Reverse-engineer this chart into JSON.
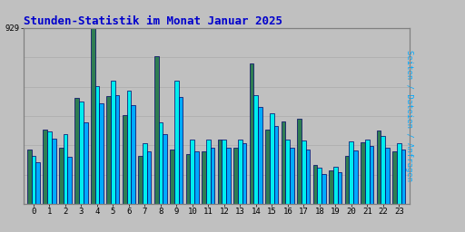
{
  "title": "Stunden-Statistik im Monat Januar 2025",
  "title_color": "#0000CC",
  "background_color": "#C0C0C0",
  "ymax": 929,
  "ymax_label": "929",
  "hours": [
    0,
    1,
    2,
    3,
    4,
    5,
    6,
    7,
    8,
    9,
    10,
    11,
    12,
    13,
    14,
    15,
    16,
    17,
    18,
    19,
    20,
    21,
    22,
    23
  ],
  "seiten": [
    290,
    395,
    295,
    560,
    929,
    570,
    470,
    255,
    780,
    290,
    265,
    280,
    340,
    295,
    740,
    395,
    435,
    450,
    205,
    180,
    255,
    325,
    390,
    280
  ],
  "dateien": [
    255,
    385,
    370,
    540,
    620,
    650,
    600,
    320,
    430,
    650,
    340,
    340,
    340,
    340,
    575,
    480,
    340,
    335,
    190,
    195,
    330,
    340,
    360,
    320
  ],
  "anfragen": [
    220,
    345,
    250,
    430,
    530,
    575,
    520,
    280,
    370,
    565,
    280,
    295,
    295,
    320,
    510,
    410,
    295,
    290,
    160,
    170,
    285,
    305,
    295,
    290
  ],
  "color_seiten": "#2E7D52",
  "color_dateien": "#00EEEE",
  "color_anfragen": "#00AAFF",
  "border_color": "#000066",
  "grid_color": "#B0B0B0",
  "bar_width": 0.27,
  "right_label_seiten": "Seiten",
  "right_label_sep": " / ",
  "right_label_dateien": "Dateien",
  "right_label_anfragen": "Anfragen",
  "right_label_color_seiten": "#2E7D52",
  "right_label_color_sep": "#000000",
  "right_label_color_dateien": "#00AAAA",
  "right_label_color_anfragen": "#00AAFF"
}
